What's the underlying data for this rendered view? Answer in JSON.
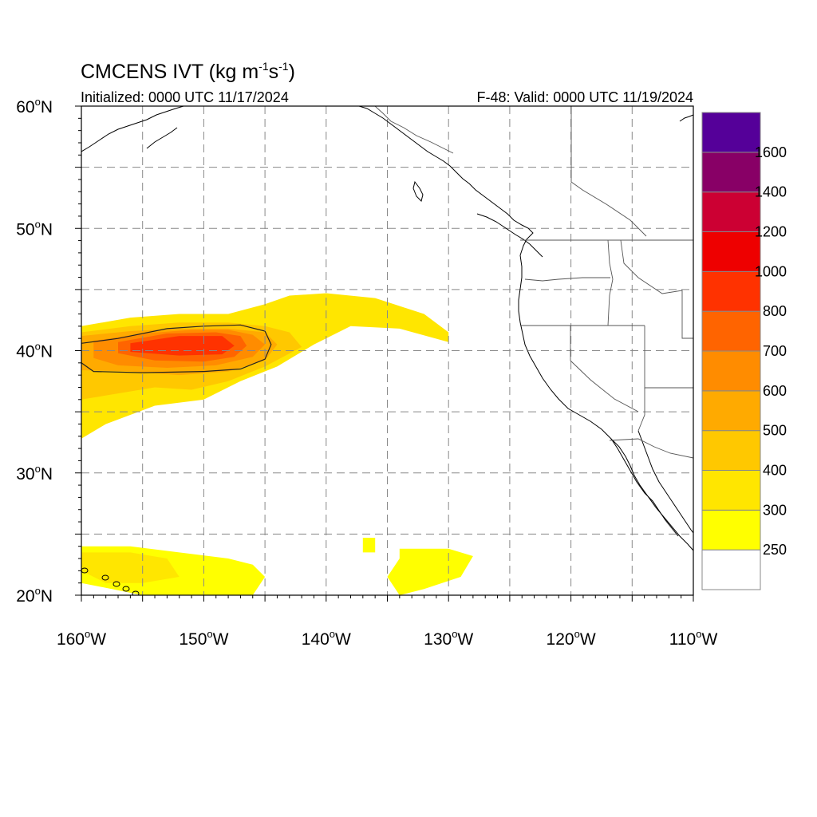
{
  "title": {
    "main": "CMCENS IVT (kg m",
    "sup1": "-1",
    "mid": "s",
    "sup2": "-1",
    "end": ")"
  },
  "initialized": "Initialized: 0000 UTC 11/17/2024",
  "valid": "F-48: Valid: 0000 UTC 11/19/2024",
  "lat_labels": [
    {
      "lat": 60,
      "value": "60",
      "hem": "N"
    },
    {
      "lat": 50,
      "value": "50",
      "hem": "N"
    },
    {
      "lat": 40,
      "value": "40",
      "hem": "N"
    },
    {
      "lat": 30,
      "value": "30",
      "hem": "N"
    },
    {
      "lat": 20,
      "value": "20",
      "hem": "N"
    }
  ],
  "lon_labels": [
    {
      "lon": -160,
      "value": "160",
      "hem": "W"
    },
    {
      "lon": -150,
      "value": "150",
      "hem": "W"
    },
    {
      "lon": -140,
      "value": "140",
      "hem": "W"
    },
    {
      "lon": -130,
      "value": "130",
      "hem": "W"
    },
    {
      "lon": -120,
      "value": "120",
      "hem": "W"
    },
    {
      "lon": -110,
      "value": "110",
      "hem": "W"
    }
  ],
  "map_extent": {
    "lon_min": -160,
    "lon_max": -110,
    "lat_min": 20,
    "lat_max": 60
  },
  "colorbar": {
    "labels": [
      "250",
      "300",
      "400",
      "500",
      "600",
      "700",
      "800",
      "1000",
      "1200",
      "1400",
      "1600"
    ],
    "colors": [
      "#ffffff",
      "#ffff00",
      "#ffe600",
      "#ffc800",
      "#ffaa00",
      "#ff8c00",
      "#ff6400",
      "#ff3200",
      "#ee0000",
      "#cc0033",
      "#880066",
      "#550099"
    ]
  },
  "ivt_plumes": [
    {
      "lon": [
        -160,
        -156,
        -152,
        -148,
        -145,
        -143,
        -140,
        -136,
        -132,
        -130,
        -130,
        -134,
        -138,
        -141,
        -144,
        -147,
        -150,
        -154,
        -158,
        -160
      ],
      "lat": [
        42,
        42.7,
        43,
        43,
        43.8,
        44.5,
        44.7,
        44.3,
        43,
        41.5,
        40.7,
        41.8,
        42,
        40.5,
        38.7,
        37.5,
        36,
        35.5,
        34,
        32.8
      ],
      "level": 300
    },
    {
      "lon": [
        -160,
        -156,
        -152,
        -148,
        -145,
        -143,
        -142,
        -145,
        -148,
        -151,
        -154,
        -157,
        -160
      ],
      "lat": [
        41.5,
        42,
        42.3,
        42.3,
        42,
        41.5,
        40.3,
        38.7,
        37.5,
        36.8,
        37,
        36.5,
        36
      ],
      "level": 400
    },
    {
      "lon": [
        -160,
        -156,
        -152,
        -148,
        -145,
        -144,
        -145,
        -148,
        -152,
        -156,
        -160
      ],
      "lat": [
        41.2,
        41.6,
        41.8,
        41.8,
        41.5,
        40.5,
        39.2,
        38.3,
        38,
        38.3,
        38.4
      ],
      "level": 500
    },
    {
      "lon": [
        -159,
        -155,
        -151,
        -148,
        -146,
        -145,
        -146,
        -149,
        -153,
        -157,
        -159
      ],
      "lat": [
        40.8,
        41.4,
        41.7,
        41.7,
        41.3,
        40.5,
        39.5,
        38.8,
        38.6,
        38.8,
        39.4
      ],
      "level": 600
    },
    {
      "lon": [
        -157,
        -153,
        -149,
        -147,
        -146.5,
        -147.5,
        -150,
        -154,
        -157
      ],
      "lat": [
        40.7,
        41.4,
        41.5,
        41.2,
        40.4,
        39.5,
        39.1,
        39.2,
        39.8
      ],
      "level": 700
    },
    {
      "lon": [
        -156,
        -152,
        -148.5,
        -147.5,
        -148.5,
        -152,
        -156
      ],
      "lat": [
        40.6,
        41.2,
        41.2,
        40.4,
        39.7,
        39.6,
        39.9
      ],
      "level": 800
    },
    {
      "lon": [
        -160,
        -156,
        -152,
        -148,
        -146,
        -145,
        -146,
        -150,
        -155,
        -160
      ],
      "lat": [
        24,
        24,
        23.5,
        23,
        22.5,
        21.5,
        20,
        20,
        20,
        21
      ],
      "level": 250
    },
    {
      "lon": [
        -160,
        -156,
        -153,
        -152,
        -155,
        -158,
        -160
      ],
      "lat": [
        23.5,
        23.5,
        23,
        21.5,
        21,
        21,
        22
      ],
      "level": 300
    },
    {
      "lon": [
        -137,
        -136,
        -136,
        -137
      ],
      "lat": [
        24.7,
        24.7,
        23.5,
        23.5
      ],
      "level": 250
    },
    {
      "lon": [
        -134,
        -130,
        -128,
        -129,
        -132,
        -134,
        -135,
        -134
      ],
      "lat": [
        23.8,
        23.8,
        23.2,
        21.5,
        20.5,
        20,
        21.5,
        23
      ],
      "level": 250
    }
  ],
  "plume_outline": {
    "lon": [
      -160,
      -157,
      -153,
      -150,
      -147,
      -145,
      -144.5,
      -145,
      -147,
      -150,
      -155,
      -159,
      -160
    ],
    "lat": [
      40.6,
      41,
      41.8,
      42,
      42.1,
      41.6,
      40.5,
      39.3,
      38.5,
      38.3,
      38.2,
      38.3,
      39
    ],
    "level": 600
  }
}
